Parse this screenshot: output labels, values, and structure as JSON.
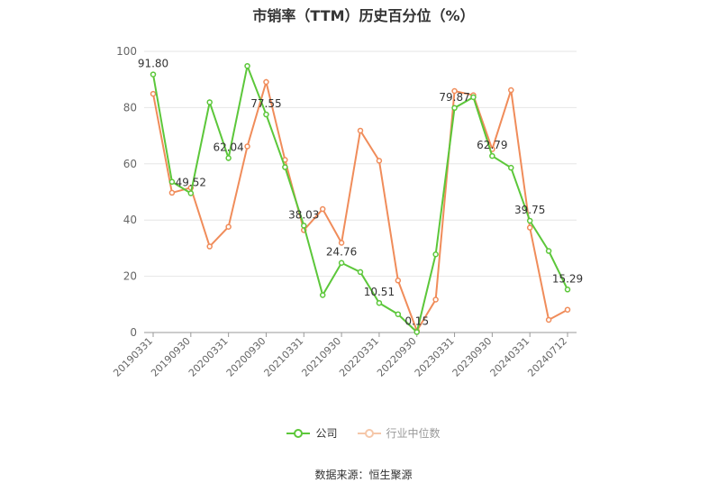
{
  "chart_data": {
    "type": "line",
    "title": "市销率（TTM）历史百分位（%）",
    "ylim": [
      0,
      100
    ],
    "y_ticks": [
      0,
      20,
      40,
      60,
      80,
      100
    ],
    "grid": true,
    "legend_position": "bottom",
    "x_tick_labels": [
      "20190331",
      "20190930",
      "20200331",
      "20200930",
      "20210331",
      "20210930",
      "20220331",
      "20220930",
      "20230331",
      "20230930",
      "20240331",
      "20240712"
    ],
    "x": [
      "20190331",
      "20190630",
      "20190930",
      "20191231",
      "20200331",
      "20200630",
      "20200930",
      "20201231",
      "20210331",
      "20210630",
      "20210930",
      "20211231",
      "20220331",
      "20220630",
      "20220930",
      "20221231",
      "20230331",
      "20230630",
      "20230930",
      "20231231",
      "20240331",
      "20240630",
      "20240712"
    ],
    "series": [
      {
        "name": "公司",
        "color": "#5cc73a",
        "values": [
          91.8,
          53.6,
          49.52,
          81.9,
          62.04,
          94.8,
          77.55,
          58.8,
          38.03,
          13.3,
          24.76,
          21.5,
          10.51,
          6.5,
          0.15,
          27.8,
          79.87,
          83.7,
          62.79,
          58.6,
          39.75,
          29.0,
          15.29
        ],
        "labels": [
          "91.80",
          null,
          "49.52",
          null,
          "62.04",
          null,
          "77.55",
          null,
          "38.03",
          null,
          "24.76",
          null,
          "10.51",
          null,
          "0.15",
          null,
          "79.87",
          null,
          "62.79",
          null,
          "39.75",
          null,
          "15.29"
        ]
      },
      {
        "name": "行业中位数",
        "color": "#f08c5a",
        "values": [
          84.9,
          49.7,
          51.5,
          30.6,
          37.6,
          66.2,
          89.1,
          61.4,
          36.4,
          43.9,
          31.9,
          71.8,
          61.1,
          18.5,
          0.6,
          11.7,
          85.9,
          84.4,
          65.2,
          86.2,
          37.3,
          4.5,
          8.1
        ]
      }
    ],
    "source": "数据来源：恒生聚源"
  }
}
